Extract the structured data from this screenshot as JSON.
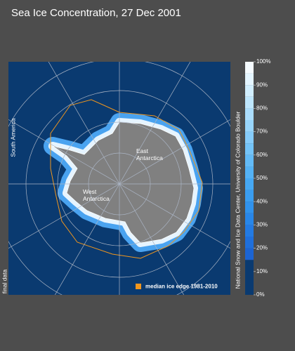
{
  "title": "Sea Ice Concentration, 27 Dec 2001",
  "map": {
    "labels": [
      "East Antarctica",
      "West Antarctica",
      "South America"
    ],
    "status": "final data",
    "legend": "median ice edge 1981-2010",
    "legend_color": "#f0961e",
    "credit": "National Snow and Ice Data Center, University of Colorado Boulder"
  },
  "colorbar": {
    "bins": [
      0,
      15,
      20,
      25,
      30,
      35,
      40,
      45,
      50,
      55,
      60,
      65,
      70,
      75,
      80,
      85,
      90,
      95,
      100
    ],
    "colors": [
      "#0a3a70",
      "#1c64d2",
      "#1f6fdb",
      "#237ae2",
      "#2886e8",
      "#3092ec",
      "#3a9df0",
      "#46a8f3",
      "#54b2f5",
      "#63bbf7",
      "#74c4f8",
      "#86ccfa",
      "#98d5fb",
      "#abddfc",
      "#bee6fd",
      "#d1eefe",
      "#e4f5ff",
      "#f5fbff"
    ],
    "ticks": [
      {
        "value": 0,
        "label": "0%"
      },
      {
        "value": 10,
        "label": "10%"
      },
      {
        "value": 20,
        "label": "20%"
      },
      {
        "value": 30,
        "label": "30%"
      },
      {
        "value": 40,
        "label": "40%"
      },
      {
        "value": 50,
        "label": "50%"
      },
      {
        "value": 60,
        "label": "60%"
      },
      {
        "value": 70,
        "label": "70%"
      },
      {
        "value": 80,
        "label": "80%"
      },
      {
        "value": 90,
        "label": "90%"
      },
      {
        "value": 100,
        "label": "100%"
      }
    ]
  }
}
